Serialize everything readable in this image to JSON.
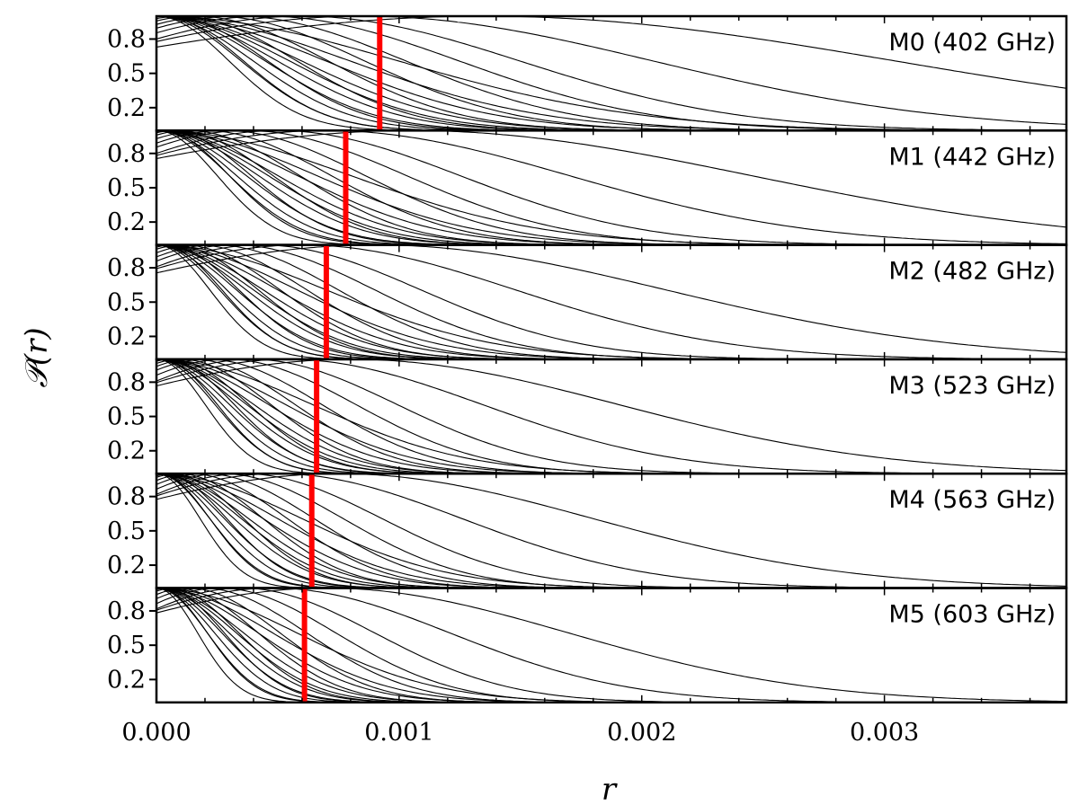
{
  "chart_data": {
    "type": "line",
    "xlabel": "r",
    "ylabel": "𝒫(r)",
    "xlim": [
      0,
      0.00375
    ],
    "ylim": [
      0,
      1.0
    ],
    "x_ticks": [
      "0.000",
      "0.001",
      "0.002",
      "0.003"
    ],
    "x_tick_values": [
      0,
      0.001,
      0.002,
      0.003
    ],
    "y_ticks": [
      "0.8",
      "0.5",
      "0.2"
    ],
    "y_tick_values": [
      0.8,
      0.5,
      0.2
    ],
    "marker_color": "#ff0000",
    "curve_color": "#000000",
    "panels": [
      {
        "label": "M0 (402 GHz)",
        "marker_r": 0.00092,
        "curve_peaks": [
          0,
          0,
          0,
          0,
          0,
          0,
          0,
          0,
          0,
          0,
          2e-05,
          5e-05,
          0.0001,
          0.00016,
          0.00024,
          0.00033,
          0.00045,
          0.0006,
          0.00085,
          0.00135
        ],
        "curve_sigmas": [
          0.0003,
          0.00035,
          0.0004,
          0.00045,
          0.0005,
          0.00055,
          0.0006,
          0.0007,
          0.0008,
          0.001,
          0.00034,
          0.00041,
          0.00048,
          0.00055,
          0.00062,
          0.0007,
          0.0008,
          0.0009,
          0.0012,
          0.0017
        ]
      },
      {
        "label": "M1 (442 GHz)",
        "marker_r": 0.00078,
        "curve_peaks": [
          0,
          0,
          0,
          0,
          0,
          0,
          0,
          0,
          0,
          0,
          2e-05,
          5e-05,
          8e-05,
          0.00013,
          0.0002,
          0.00028,
          0.00037,
          0.0005,
          0.0007,
          0.00105
        ],
        "curve_sigmas": [
          0.00025,
          0.0003,
          0.00033,
          0.00037,
          0.00042,
          0.00046,
          0.0005,
          0.00058,
          0.00066,
          0.0008,
          0.00028,
          0.00034,
          0.0004,
          0.00046,
          0.00052,
          0.00058,
          0.00066,
          0.00075,
          0.001,
          0.0014
        ]
      },
      {
        "label": "M2 (482 GHz)",
        "marker_r": 0.0007,
        "curve_peaks": [
          0,
          0,
          0,
          0,
          0,
          0,
          0,
          0,
          0,
          0,
          2e-05,
          4e-05,
          7e-05,
          0.00011,
          0.00017,
          0.00024,
          0.00032,
          0.00043,
          0.0006,
          0.0009
        ],
        "curve_sigmas": [
          0.00022,
          0.00026,
          0.00029,
          0.00033,
          0.00037,
          0.0004,
          0.00044,
          0.0005,
          0.00058,
          0.0007,
          0.00025,
          0.0003,
          0.00035,
          0.0004,
          0.00045,
          0.00051,
          0.00058,
          0.00066,
          0.00088,
          0.0012
        ]
      },
      {
        "label": "M3 (523 GHz)",
        "marker_r": 0.00066,
        "curve_peaks": [
          0,
          0,
          0,
          0,
          0,
          0,
          0,
          0,
          0,
          0,
          2e-05,
          4e-05,
          6e-05,
          0.0001,
          0.00015,
          0.00021,
          0.00029,
          0.00039,
          0.00054,
          0.0008
        ],
        "curve_sigmas": [
          0.0002,
          0.00024,
          0.00027,
          0.0003,
          0.00034,
          0.00037,
          0.0004,
          0.00046,
          0.00053,
          0.00064,
          0.00023,
          0.00028,
          0.00032,
          0.00037,
          0.00042,
          0.00047,
          0.00053,
          0.0006,
          0.0008,
          0.0011
        ]
      },
      {
        "label": "M4 (563 GHz)",
        "marker_r": 0.00064,
        "curve_peaks": [
          0,
          0,
          0,
          0,
          0,
          0,
          0,
          0,
          0,
          0,
          1e-05,
          3e-05,
          6e-05,
          9e-05,
          0.00014,
          0.0002,
          0.00027,
          0.00036,
          0.0005,
          0.00075
        ],
        "curve_sigmas": [
          0.00018,
          0.00022,
          0.00025,
          0.00028,
          0.00032,
          0.00035,
          0.00038,
          0.00044,
          0.0005,
          0.0006,
          0.00021,
          0.00026,
          0.0003,
          0.00035,
          0.0004,
          0.00045,
          0.0005,
          0.00057,
          0.00076,
          0.00105
        ]
      },
      {
        "label": "M5 (603 GHz)",
        "marker_r": 0.00061,
        "curve_peaks": [
          0,
          0,
          0,
          0,
          0,
          0,
          0,
          0,
          0,
          0,
          1e-05,
          3e-05,
          5e-05,
          8e-05,
          0.00013,
          0.00019,
          0.00026,
          0.00035,
          0.00048,
          0.0007
        ],
        "curve_sigmas": [
          0.00017,
          0.00021,
          0.00024,
          0.00027,
          0.0003,
          0.00033,
          0.00036,
          0.00042,
          0.00048,
          0.00058,
          0.0002,
          0.00025,
          0.00029,
          0.00034,
          0.00038,
          0.00043,
          0.00048,
          0.00055,
          0.00073,
          0.001
        ]
      }
    ]
  }
}
